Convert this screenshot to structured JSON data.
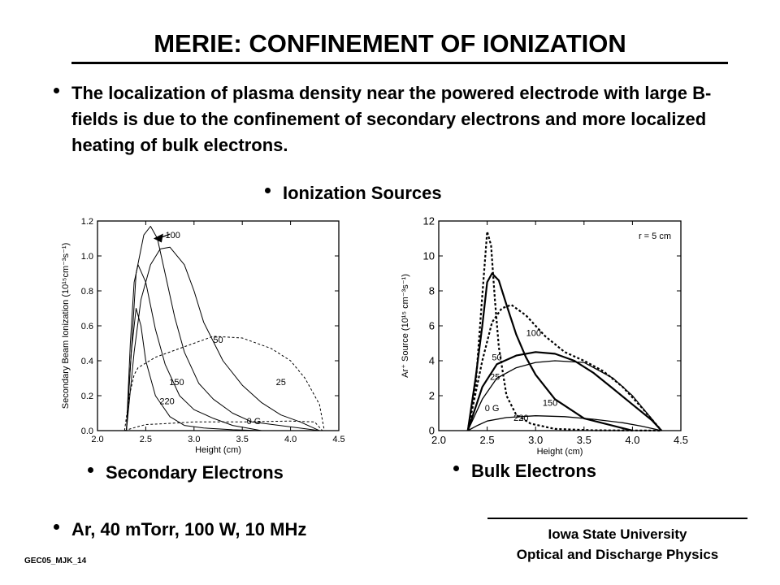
{
  "slide": {
    "title": "MERIE: CONFINEMENT OF IONIZATION",
    "bullets": {
      "main": "The localization of plasma density near the powered electrode with large B-fields is due to the confinement of secondary electrons and more localized heating of bulk electrons.",
      "sources": "Ionization Sources",
      "secondary": "Secondary Electrons",
      "bulk": "Bulk Electrons",
      "conditions": "Ar, 40 mTorr, 100 W, 10 MHz"
    },
    "footer": {
      "line1": "Iowa State University",
      "line2": "Optical and Discharge Physics",
      "doc_id": "GEC05_MJK_14"
    }
  },
  "chart_data": [
    {
      "type": "line",
      "xlabel": "Height (cm)",
      "ylabel": "Secondary Beam Ionization (10¹⁵cm⁻³s⁻¹)",
      "xlim": [
        2.0,
        4.5
      ],
      "ylim": [
        0.0,
        1.2
      ],
      "xticks": [
        2.0,
        2.5,
        3.0,
        3.5,
        4.0,
        4.5
      ],
      "yticks": [
        0.0,
        0.2,
        0.4,
        0.6,
        0.8,
        1.0,
        1.2
      ],
      "xticklabels": [
        "2.0",
        "2.5",
        "3.0",
        "3.5",
        "4.0",
        "4.5"
      ],
      "yticklabels": [
        "0.0",
        "0.2",
        "0.4",
        "0.6",
        "0.8",
        "1.0",
        "1.2"
      ],
      "grid": false,
      "series": [
        {
          "name": "0 G",
          "dash": true,
          "label_pos": [
            3.62,
            0.055
          ],
          "x": [
            2.28,
            2.4,
            2.5,
            2.7,
            3.0,
            3.5,
            4.0,
            4.25,
            4.33
          ],
          "y": [
            0.0,
            0.02,
            0.035,
            0.04,
            0.05,
            0.05,
            0.055,
            0.05,
            0.0
          ]
        },
        {
          "name": "25",
          "dash": true,
          "label_pos": [
            3.9,
            0.28
          ],
          "x": [
            2.28,
            2.33,
            2.38,
            2.42,
            2.6,
            2.8,
            3.0,
            3.2,
            3.5,
            3.8,
            4.0,
            4.15,
            4.3,
            4.35
          ],
          "y": [
            0.0,
            0.2,
            0.32,
            0.36,
            0.42,
            0.46,
            0.5,
            0.54,
            0.53,
            0.47,
            0.4,
            0.3,
            0.15,
            0.0
          ]
        },
        {
          "name": "50",
          "dash": false,
          "label_pos": [
            3.25,
            0.52
          ],
          "x": [
            2.3,
            2.38,
            2.45,
            2.55,
            2.65,
            2.75,
            2.9,
            3.0,
            3.1,
            3.3,
            3.5,
            3.7,
            3.9,
            4.1,
            4.3
          ],
          "y": [
            0.0,
            0.45,
            0.75,
            0.95,
            1.04,
            1.05,
            0.95,
            0.8,
            0.62,
            0.4,
            0.26,
            0.16,
            0.09,
            0.05,
            0.0
          ]
        },
        {
          "name": "100",
          "dash": false,
          "label_pos": [
            2.78,
            1.12
          ],
          "x": [
            2.3,
            2.35,
            2.4,
            2.48,
            2.55,
            2.62,
            2.7,
            2.8,
            2.9,
            3.05,
            3.2,
            3.4,
            3.6,
            4.3
          ],
          "y": [
            0.0,
            0.45,
            0.9,
            1.12,
            1.17,
            1.1,
            0.9,
            0.65,
            0.45,
            0.27,
            0.18,
            0.1,
            0.05,
            0.0
          ]
        },
        {
          "name": "150",
          "dash": false,
          "label_pos": [
            2.82,
            0.28
          ],
          "x": [
            2.3,
            2.34,
            2.38,
            2.42,
            2.5,
            2.6,
            2.7,
            2.85,
            3.0,
            3.2,
            3.4,
            3.7
          ],
          "y": [
            0.0,
            0.5,
            0.85,
            0.95,
            0.85,
            0.58,
            0.38,
            0.2,
            0.12,
            0.07,
            0.03,
            0.0
          ]
        },
        {
          "name": "220",
          "dash": false,
          "label_pos": [
            2.72,
            0.17
          ],
          "x": [
            2.3,
            2.35,
            2.4,
            2.45,
            2.5,
            2.6,
            2.75,
            2.9,
            3.1,
            3.4,
            3.7
          ],
          "y": [
            0.0,
            0.45,
            0.7,
            0.6,
            0.4,
            0.2,
            0.08,
            0.03,
            0.015,
            0.005,
            0.0
          ]
        }
      ],
      "annotation_arrow": {
        "from": [
          2.75,
          1.125
        ],
        "to": [
          2.58,
          1.1
        ]
      }
    },
    {
      "type": "line",
      "xlabel": "Height (cm)",
      "ylabel": "Ar⁺ Source (10¹⁵ cm⁻³s⁻¹)",
      "xlim": [
        2.0,
        4.5
      ],
      "ylim": [
        0,
        12
      ],
      "xticks": [
        2.0,
        2.5,
        3.0,
        3.5,
        4.0,
        4.5
      ],
      "yticks": [
        0,
        2,
        4,
        6,
        8,
        10,
        12
      ],
      "xticklabels": [
        "2.0",
        "2.5",
        "3.0",
        "3.5",
        "4.0",
        "4.5"
      ],
      "yticklabels": [
        "0",
        "2",
        "4",
        "6",
        "8",
        "10",
        "12"
      ],
      "grid": false,
      "annotation": "r = 5 cm",
      "series": [
        {
          "name": "0 G",
          "dash": false,
          "width": 1.3,
          "label_pos": [
            2.55,
            1.3
          ],
          "x": [
            2.3,
            2.4,
            2.5,
            2.7,
            3.0,
            3.3,
            3.6,
            3.9,
            4.1,
            4.3
          ],
          "y": [
            0.0,
            0.3,
            0.55,
            0.75,
            0.85,
            0.8,
            0.65,
            0.45,
            0.25,
            0.0
          ]
        },
        {
          "name": "25",
          "dash": false,
          "width": 1.3,
          "label_pos": [
            2.58,
            3.1
          ],
          "x": [
            2.3,
            2.45,
            2.6,
            2.8,
            3.0,
            3.2,
            3.5,
            3.8,
            4.0,
            4.15,
            4.3
          ],
          "y": [
            0.0,
            1.8,
            3.0,
            3.6,
            3.9,
            4.0,
            3.9,
            3.0,
            2.0,
            1.0,
            0.0
          ]
        },
        {
          "name": "50",
          "dash": false,
          "width": 2.2,
          "label_pos": [
            2.6,
            4.2
          ],
          "x": [
            2.3,
            2.45,
            2.6,
            2.8,
            3.0,
            3.2,
            3.4,
            3.6,
            3.8,
            4.0,
            4.2,
            4.3
          ],
          "y": [
            0.0,
            2.5,
            3.8,
            4.3,
            4.5,
            4.4,
            4.0,
            3.3,
            2.4,
            1.5,
            0.6,
            0.0
          ]
        },
        {
          "name": "100",
          "dash": true,
          "width": 2.2,
          "label_pos": [
            2.98,
            5.6
          ],
          "x": [
            2.3,
            2.45,
            2.55,
            2.65,
            2.75,
            2.9,
            3.1,
            3.3,
            3.5,
            3.7,
            3.9,
            4.1,
            4.3
          ],
          "y": [
            0.0,
            4.0,
            6.2,
            7.0,
            7.2,
            6.6,
            5.4,
            4.5,
            4.0,
            3.4,
            2.5,
            1.3,
            0.0
          ]
        },
        {
          "name": "150",
          "dash": false,
          "width": 2.2,
          "label_pos": [
            3.15,
            1.6
          ],
          "x": [
            2.3,
            2.38,
            2.45,
            2.5,
            2.55,
            2.62,
            2.7,
            2.8,
            2.9,
            3.0,
            3.2,
            3.5,
            4.0
          ],
          "y": [
            0.0,
            3.0,
            6.0,
            8.5,
            9.0,
            8.6,
            7.2,
            5.5,
            4.2,
            3.2,
            1.8,
            0.7,
            0.0
          ]
        },
        {
          "name": "220",
          "dash": true,
          "width": 2.2,
          "label_pos": [
            2.85,
            0.75
          ],
          "x": [
            2.3,
            2.38,
            2.44,
            2.5,
            2.54,
            2.58,
            2.62,
            2.7,
            2.8,
            2.95,
            3.2,
            3.6,
            4.0,
            4.3
          ],
          "y": [
            0.0,
            2.5,
            7.0,
            11.4,
            10.6,
            7.5,
            4.8,
            2.0,
            0.9,
            0.4,
            0.1,
            0.02,
            0.01,
            0.0
          ]
        }
      ]
    }
  ]
}
